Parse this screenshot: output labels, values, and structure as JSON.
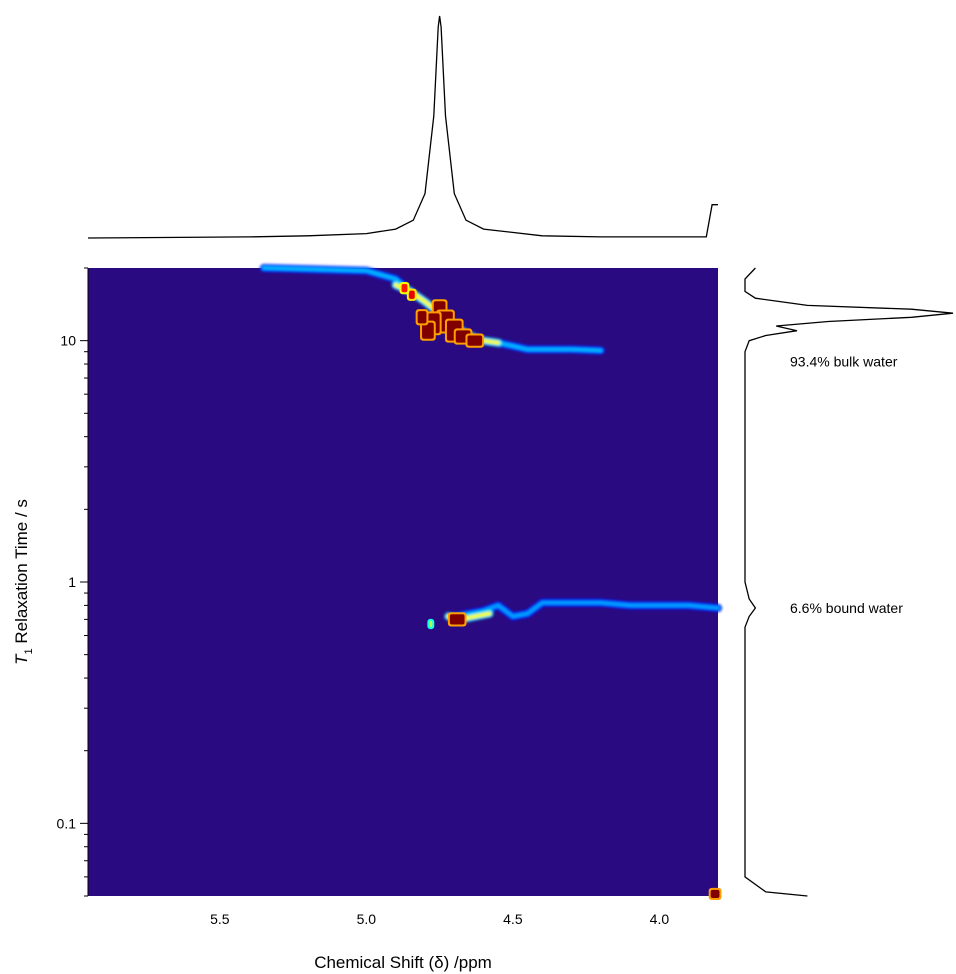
{
  "chart_data": {
    "type": "heatmap",
    "title": "",
    "xlabel": "Chemical Shift (δ) /ppm",
    "ylabel_symbol": "T",
    "ylabel_subscript": "1",
    "ylabel_rest": " Relaxation Time / s",
    "x_reversed": true,
    "xlim": [
      5.95,
      3.8
    ],
    "ylim": [
      0.05,
      20
    ],
    "y_scale": "log",
    "grid": false,
    "colormap": "jet",
    "background_color": "#2a0a80",
    "x_ticks": [
      {
        "value": 5.5,
        "label": "5.5"
      },
      {
        "value": 5.0,
        "label": "5.0"
      },
      {
        "value": 4.5,
        "label": "4.5"
      },
      {
        "value": 4.0,
        "label": "4.0"
      }
    ],
    "y_ticks": [
      {
        "value": 0.1,
        "label": "0.1"
      },
      {
        "value": 1,
        "label": "1"
      },
      {
        "value": 10,
        "label": "10"
      }
    ],
    "top_projection": {
      "description": "1D proton spectrum",
      "points": [
        [
          5.95,
          0.0
        ],
        [
          5.4,
          0.005
        ],
        [
          5.2,
          0.01
        ],
        [
          5.0,
          0.02
        ],
        [
          4.9,
          0.04
        ],
        [
          4.84,
          0.08
        ],
        [
          4.8,
          0.2
        ],
        [
          4.77,
          0.55
        ],
        [
          4.755,
          0.95
        ],
        [
          4.75,
          1.0
        ],
        [
          4.745,
          0.95
        ],
        [
          4.73,
          0.55
        ],
        [
          4.7,
          0.2
        ],
        [
          4.66,
          0.08
        ],
        [
          4.6,
          0.04
        ],
        [
          4.4,
          0.01
        ],
        [
          4.2,
          0.005
        ],
        [
          3.84,
          0.005
        ],
        [
          3.82,
          0.15
        ],
        [
          3.8,
          0.15
        ]
      ]
    },
    "right_projection": {
      "description": "T1 distribution",
      "points": [
        [
          20,
          0.05
        ],
        [
          18,
          0.0
        ],
        [
          16,
          0.0
        ],
        [
          15,
          0.05
        ],
        [
          14,
          0.3
        ],
        [
          13.5,
          0.8
        ],
        [
          13,
          1.0
        ],
        [
          12.5,
          0.8
        ],
        [
          12,
          0.4
        ],
        [
          11.5,
          0.15
        ],
        [
          11,
          0.25
        ],
        [
          10.5,
          0.1
        ],
        [
          10,
          0.02
        ],
        [
          9,
          0.0
        ],
        [
          1,
          0.0
        ],
        [
          0.85,
          0.02
        ],
        [
          0.78,
          0.05
        ],
        [
          0.72,
          0.02
        ],
        [
          0.65,
          0.0
        ],
        [
          0.06,
          0.0
        ],
        [
          0.052,
          0.1
        ],
        [
          0.05,
          0.3
        ]
      ]
    },
    "annotations": [
      {
        "text": "93.4% bulk water",
        "y": 8.2
      },
      {
        "text": "6.6% bound water",
        "y": 0.78
      }
    ],
    "traces": [
      {
        "name": "bulk",
        "intensity": 0.3,
        "points": [
          [
            5.35,
            20
          ],
          [
            5.0,
            19.5
          ],
          [
            4.9,
            18
          ],
          [
            4.85,
            16
          ],
          [
            4.8,
            14.5
          ],
          [
            4.75,
            13
          ],
          [
            4.7,
            11.5
          ],
          [
            4.65,
            10.5
          ],
          [
            4.6,
            10.0
          ],
          [
            4.55,
            9.8
          ],
          [
            4.5,
            9.5
          ],
          [
            4.45,
            9.2
          ],
          [
            4.4,
            9.2
          ],
          [
            4.3,
            9.2
          ],
          [
            4.2,
            9.1
          ]
        ]
      },
      {
        "name": "bulk-core",
        "intensity": 0.62,
        "points": [
          [
            4.9,
            17
          ],
          [
            4.85,
            16
          ],
          [
            4.8,
            14.5
          ],
          [
            4.75,
            13
          ],
          [
            4.7,
            11.5
          ],
          [
            4.65,
            10.5
          ],
          [
            4.6,
            10.0
          ],
          [
            4.55,
            9.8
          ]
        ]
      },
      {
        "name": "bound",
        "intensity": 0.28,
        "points": [
          [
            4.7,
            0.72
          ],
          [
            4.6,
            0.76
          ],
          [
            4.55,
            0.8
          ],
          [
            4.5,
            0.72
          ],
          [
            4.45,
            0.74
          ],
          [
            4.4,
            0.82
          ],
          [
            4.3,
            0.82
          ],
          [
            4.2,
            0.82
          ],
          [
            4.1,
            0.8
          ],
          [
            4.0,
            0.8
          ],
          [
            3.9,
            0.8
          ],
          [
            3.8,
            0.78
          ]
        ]
      },
      {
        "name": "bound-core",
        "intensity": 0.62,
        "points": [
          [
            4.72,
            0.72
          ],
          [
            4.68,
            0.7
          ],
          [
            4.63,
            0.72
          ],
          [
            4.58,
            0.74
          ]
        ]
      }
    ],
    "hotspots": [
      {
        "x": 4.75,
        "y": 13.0,
        "w": 0.04,
        "h": 1.12,
        "intensity": 1.0
      },
      {
        "x": 4.73,
        "y": 12.0,
        "w": 0.05,
        "h": 1.1,
        "intensity": 1.0
      },
      {
        "x": 4.7,
        "y": 11.0,
        "w": 0.05,
        "h": 1.1,
        "intensity": 1.0
      },
      {
        "x": 4.77,
        "y": 11.8,
        "w": 0.04,
        "h": 1.1,
        "intensity": 1.0
      },
      {
        "x": 4.79,
        "y": 11.0,
        "w": 0.04,
        "h": 1.08,
        "intensity": 1.0
      },
      {
        "x": 4.67,
        "y": 10.4,
        "w": 0.05,
        "h": 1.06,
        "intensity": 1.0
      },
      {
        "x": 4.63,
        "y": 10.0,
        "w": 0.05,
        "h": 1.05,
        "intensity": 1.0
      },
      {
        "x": 4.81,
        "y": 12.5,
        "w": 0.03,
        "h": 1.06,
        "intensity": 1.0
      },
      {
        "x": 4.845,
        "y": 15.5,
        "w": 0.02,
        "h": 1.04,
        "intensity": 0.9
      },
      {
        "x": 4.87,
        "y": 16.5,
        "w": 0.02,
        "h": 1.04,
        "intensity": 0.85
      },
      {
        "x": 4.69,
        "y": 0.7,
        "w": 0.05,
        "h": 1.05,
        "intensity": 1.0
      },
      {
        "x": 4.78,
        "y": 0.67,
        "w": 0.01,
        "h": 1.03,
        "intensity": 0.55
      },
      {
        "x": 3.81,
        "y": 0.051,
        "w": 0.03,
        "h": 1.04,
        "intensity": 1.0
      }
    ]
  }
}
